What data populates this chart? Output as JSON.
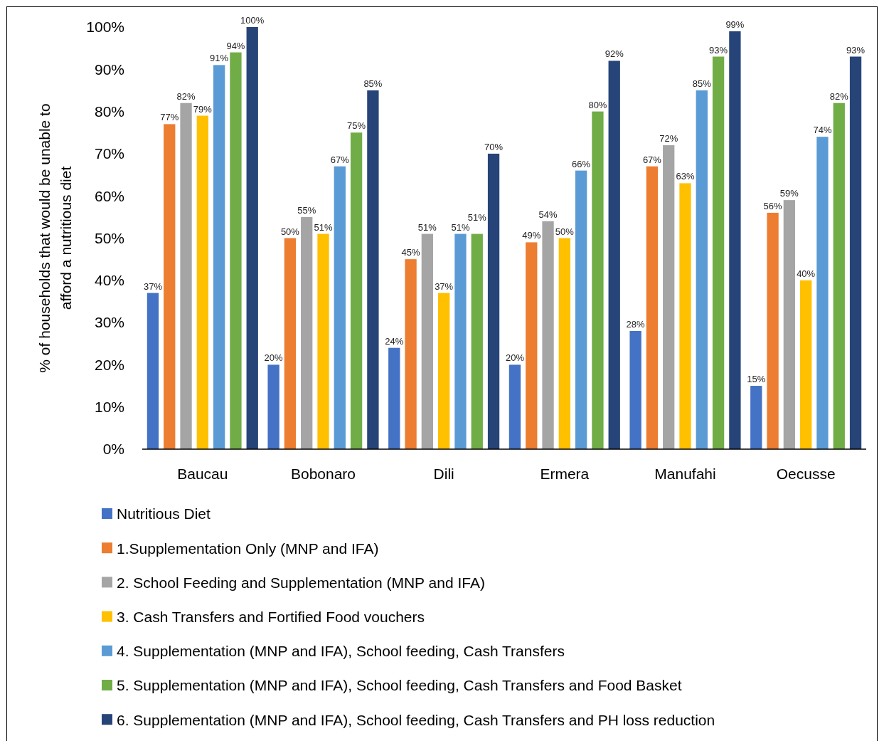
{
  "chart_data": {
    "type": "bar",
    "ylabel": "% of households that would be unable to afford a nutritious diet",
    "categories": [
      "Baucau",
      "Bobonaro",
      "Dili",
      "Ermera",
      "Manufahi",
      "Oecusse"
    ],
    "series": [
      {
        "name": "Nutritious Diet",
        "color": "#4472c4",
        "values": [
          37,
          20,
          24,
          20,
          28,
          15
        ],
        "value_labels": [
          "37%",
          "20%",
          "24%",
          "20%",
          "28%",
          "15%"
        ]
      },
      {
        "name": "1.Supplementation Only (MNP and IFA)",
        "color": "#ed7d31",
        "values": [
          77,
          50,
          45,
          49,
          67,
          56
        ],
        "value_labels": [
          "77%",
          "50%",
          "45%",
          "49%",
          "67%",
          "56%"
        ]
      },
      {
        "name": "2. School Feeding and Supplementation (MNP and IFA)",
        "color": "#a5a5a5",
        "values": [
          82,
          55,
          51,
          54,
          72,
          59
        ],
        "value_labels": [
          "82%",
          "55%",
          "51%",
          "54%",
          "72%",
          "59%"
        ]
      },
      {
        "name": "3. Cash Transfers and Fortified Food vouchers",
        "color": "#ffc000",
        "values": [
          79,
          51,
          37,
          50,
          63,
          40
        ],
        "value_labels": [
          "79%",
          "51%",
          "37%",
          "50%",
          "63%",
          "40%"
        ]
      },
      {
        "name": "4. Supplementation (MNP and IFA), School feeding, Cash Transfers",
        "color": "#5b9bd5",
        "values": [
          91,
          67,
          51,
          66,
          85,
          74
        ],
        "value_labels": [
          "91%",
          "67%",
          "51%",
          "66%",
          "85%",
          "74%"
        ]
      },
      {
        "name": "5. Supplementation (MNP and IFA), School feeding, Cash Transfers and Food Basket",
        "color": "#70ad47",
        "values": [
          94,
          75,
          51,
          80,
          93,
          82
        ],
        "value_labels": [
          "94%",
          "75%",
          "51%",
          "80%",
          "93%",
          "82%"
        ]
      },
      {
        "name": "6. Supplementation (MNP and IFA), School feeding, Cash Transfers and PH loss reduction",
        "color": "#264478",
        "values": [
          100,
          85,
          70,
          92,
          99,
          93
        ],
        "value_labels": [
          "100%",
          "85%",
          "70%",
          "92%",
          "99%",
          "93%"
        ]
      }
    ],
    "ylim": [
      0,
      100
    ],
    "yticks": [
      {
        "value": 0,
        "label": "0%"
      },
      {
        "value": 10,
        "label": "10%"
      },
      {
        "value": 20,
        "label": "20%"
      },
      {
        "value": 30,
        "label": "30%"
      },
      {
        "value": 40,
        "label": "40%"
      },
      {
        "value": 50,
        "label": "50%"
      },
      {
        "value": 60,
        "label": "60%"
      },
      {
        "value": 70,
        "label": "70%"
      },
      {
        "value": 80,
        "label": "80%"
      },
      {
        "value": 90,
        "label": "90%"
      },
      {
        "value": 100,
        "label": "100%"
      }
    ],
    "grid": false,
    "legend": "bottom"
  }
}
